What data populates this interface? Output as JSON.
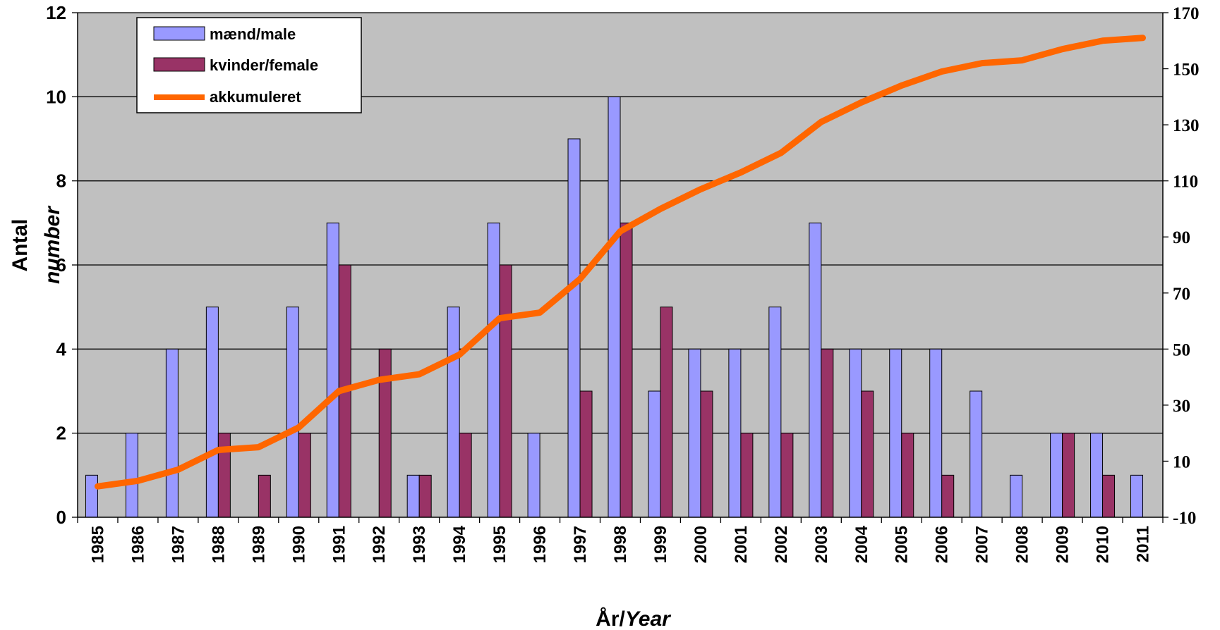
{
  "chart_data": {
    "type": "bar",
    "categories": [
      "1985",
      "1986",
      "1987",
      "1988",
      "1989",
      "1990",
      "1991",
      "1992",
      "1993",
      "1994",
      "1995",
      "1996",
      "1997",
      "1998",
      "1999",
      "2000",
      "2001",
      "2002",
      "2003",
      "2004",
      "2005",
      "2006",
      "2007",
      "2008",
      "2009",
      "2010",
      "2011"
    ],
    "series": [
      {
        "name": "mænd/male",
        "type": "bar",
        "axis": "left",
        "color": "#9999FF",
        "values": [
          1,
          2,
          4,
          5,
          0,
          5,
          7,
          0,
          1,
          5,
          7,
          2,
          9,
          10,
          3,
          4,
          4,
          5,
          7,
          4,
          4,
          4,
          3,
          1,
          2,
          2,
          1
        ]
      },
      {
        "name": "kvinder/female",
        "type": "bar",
        "axis": "left",
        "color": "#993366",
        "values": [
          0,
          0,
          0,
          2,
          1,
          2,
          6,
          4,
          1,
          2,
          6,
          0,
          3,
          7,
          5,
          3,
          2,
          2,
          4,
          3,
          2,
          1,
          0,
          0,
          2,
          1,
          0
        ]
      },
      {
        "name": "akkumuleret",
        "type": "line",
        "axis": "right",
        "color": "#FF6600",
        "values": [
          1,
          3,
          7,
          14,
          15,
          22,
          35,
          39,
          41,
          48,
          61,
          63,
          75,
          92,
          100,
          107,
          113,
          120,
          131,
          138,
          144,
          149,
          152,
          153,
          157,
          160,
          161
        ]
      }
    ],
    "ylabel_line1": "Antal",
    "ylabel_line2": "number",
    "xlabel_part1": "År/",
    "xlabel_part2": "Year",
    "ylim_left": [
      0,
      12
    ],
    "yticks_left": [
      0,
      2,
      4,
      6,
      8,
      10,
      12
    ],
    "ylim_right": [
      -10,
      170
    ],
    "yticks_right": [
      -10,
      10,
      30,
      50,
      70,
      90,
      110,
      130,
      150,
      170
    ],
    "grid": true,
    "plot_background": "#C0C0C0",
    "legend_position": "top-left"
  }
}
